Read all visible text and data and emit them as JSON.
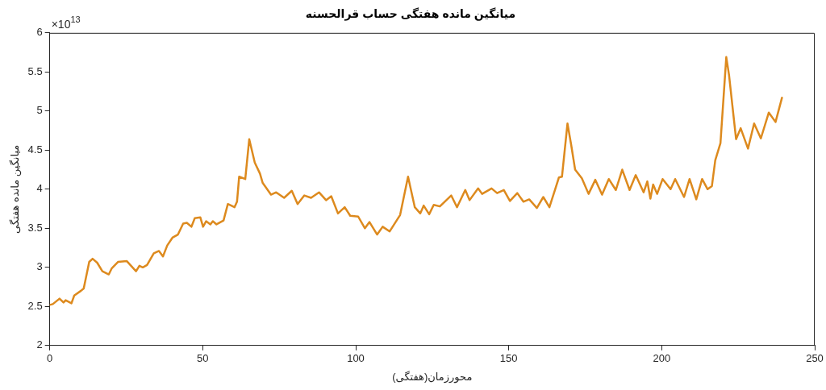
{
  "chart_data": {
    "type": "line",
    "title": "میانگین مانده هفتگی حساب قرالحسنه",
    "xlabel": "محورزمان(هفتگی)",
    "ylabel": "میانگین مانده هفتگی",
    "annotations": [
      "×10$^{13}$"
    ],
    "xlim": [
      0,
      250
    ],
    "xticks": [
      0,
      50,
      100,
      150,
      200,
      250
    ],
    "ylim": [
      2,
      6
    ],
    "yticks": [
      2,
      2.5,
      3,
      3.5,
      4,
      4.5,
      5,
      5.5,
      6
    ],
    "grid": false,
    "legend": false,
    "marker": "none",
    "line_style": "solid",
    "series": [
      {
        "color": "#dd8a1e",
        "x": [
          0,
          1,
          3.2,
          4.5,
          5.2,
          7.1,
          8,
          10.2,
          11.1,
          12.9,
          14,
          15.5,
          17.2,
          19.3,
          20.3,
          22.3,
          25.2,
          28.2,
          29.3,
          30.4,
          31.8,
          34,
          35.7,
          37,
          38.4,
          40.1,
          41.9,
          43.6,
          44.8,
          46.3,
          47.4,
          49.2,
          50.1,
          51.1,
          52.5,
          53.3,
          54.5,
          56.8,
          58.2,
          60.4,
          61.2,
          61.9,
          63.9,
          65.2,
          67,
          68.7,
          69.6,
          72.3,
          74,
          76.6,
          79.1,
          81,
          83.2,
          85.4,
          88,
          90.3,
          92,
          94.2,
          96.4,
          98.2,
          100.8,
          103,
          104.5,
          107,
          108.8,
          111.1,
          114.5,
          117.1,
          119.3,
          121.1,
          122.2,
          124,
          125.5,
          127.5,
          131.2,
          133.1,
          135.8,
          137.2,
          140,
          141.3,
          144.4,
          146.2,
          148.4,
          150.4,
          152.8,
          154.8,
          156.7,
          159.2,
          161.3,
          163.3,
          165.1,
          166.4,
          167.4,
          169.2,
          170.4,
          171.7,
          173.9,
          176.1,
          178.3,
          180.5,
          182.7,
          185,
          187.1,
          189.5,
          191.5,
          194.1,
          195.3,
          196.3,
          197.2,
          198.5,
          200.3,
          202.9,
          204.4,
          207.3,
          209.1,
          211.3,
          213.2,
          215,
          216.4,
          217.5,
          219.2,
          221.1,
          222,
          224.3,
          225.8,
          228.2,
          230.2,
          232.4,
          235,
          237.2,
          239.3
        ],
        "values": [
          2.52,
          2.53,
          2.6,
          2.55,
          2.58,
          2.54,
          2.64,
          2.7,
          2.73,
          3.07,
          3.11,
          3.06,
          2.95,
          2.91,
          2.99,
          3.07,
          3.08,
          2.95,
          3.02,
          3,
          3.03,
          3.18,
          3.21,
          3.14,
          3.28,
          3.38,
          3.42,
          3.56,
          3.57,
          3.52,
          3.63,
          3.64,
          3.52,
          3.59,
          3.55,
          3.59,
          3.55,
          3.6,
          3.81,
          3.77,
          3.84,
          4.16,
          4.13,
          4.64,
          4.34,
          4.2,
          4.08,
          3.93,
          3.96,
          3.89,
          3.98,
          3.81,
          3.92,
          3.89,
          3.96,
          3.86,
          3.91,
          3.69,
          3.77,
          3.66,
          3.65,
          3.5,
          3.58,
          3.42,
          3.52,
          3.46,
          3.67,
          4.16,
          3.77,
          3.69,
          3.79,
          3.68,
          3.8,
          3.78,
          3.92,
          3.77,
          3.99,
          3.86,
          4.01,
          3.94,
          4.01,
          3.95,
          3.99,
          3.85,
          3.95,
          3.84,
          3.87,
          3.76,
          3.9,
          3.77,
          3.99,
          4.15,
          4.16,
          4.84,
          4.57,
          4.25,
          4.14,
          3.94,
          4.12,
          3.93,
          4.13,
          3.99,
          4.25,
          3.99,
          4.18,
          3.96,
          4.1,
          3.88,
          4.06,
          3.94,
          4.13,
          4,
          4.13,
          3.9,
          4.13,
          3.87,
          4.13,
          4,
          4.04,
          4.37,
          4.59,
          5.69,
          5.46,
          4.64,
          4.78,
          4.52,
          4.84,
          4.65,
          4.98,
          4.86,
          5.17
        ]
      }
    ]
  }
}
